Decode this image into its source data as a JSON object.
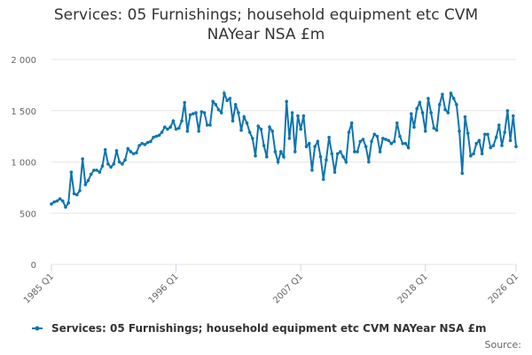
{
  "chart_data": {
    "type": "line",
    "title": "Services: 05 Furnishings; household equipment etc CVM NAYear NSA £m",
    "source": "Source:",
    "categories": [
      "1985 Q1",
      null,
      null,
      null,
      null,
      null,
      null,
      null,
      null,
      null,
      null,
      null,
      null,
      null,
      null,
      null,
      null,
      null,
      null,
      null,
      null,
      null,
      null,
      null,
      null,
      null,
      null,
      null,
      null,
      null,
      null,
      null,
      null,
      null,
      null,
      null,
      null,
      null,
      null,
      null,
      null,
      null,
      null,
      null,
      "1996 Q1",
      null,
      null,
      null,
      null,
      null,
      null,
      null,
      null,
      null,
      null,
      null,
      null,
      null,
      null,
      null,
      null,
      null,
      null,
      null,
      null,
      null,
      null,
      null,
      null,
      null,
      null,
      null,
      null,
      null,
      null,
      null,
      null,
      null,
      null,
      null,
      null,
      null,
      null,
      null,
      null,
      null,
      null,
      null,
      "2007 Q1",
      null,
      null,
      null,
      null,
      null,
      null,
      null,
      null,
      null,
      null,
      null,
      null,
      null,
      null,
      null,
      null,
      null,
      null,
      null,
      null,
      null,
      null,
      null,
      null,
      null,
      null,
      null,
      null,
      null,
      null,
      null,
      null,
      null,
      null,
      null,
      null,
      null,
      null,
      null,
      null,
      null,
      null,
      null,
      "2018 Q1",
      null,
      null,
      null,
      null,
      null,
      null,
      null,
      null,
      null,
      null,
      null,
      null,
      null,
      null,
      null,
      null,
      null,
      null,
      null,
      null,
      null,
      null,
      null,
      null,
      null,
      null,
      null,
      null,
      null,
      null,
      null,
      "2026 Q1"
    ],
    "series": [
      {
        "name": "Services: 05 Furnishings; household equipment etc CVM NAYear NSA £m",
        "color": "#0f75b0",
        "values": [
          590,
          610,
          620,
          640,
          620,
          560,
          600,
          900,
          690,
          680,
          720,
          1030,
          780,
          820,
          880,
          920,
          920,
          900,
          960,
          1120,
          980,
          950,
          980,
          1110,
          1000,
          980,
          1020,
          1130,
          1100,
          1080,
          1090,
          1160,
          1180,
          1170,
          1190,
          1200,
          1240,
          1250,
          1260,
          1290,
          1340,
          1320,
          1340,
          1400,
          1320,
          1330,
          1400,
          1580,
          1300,
          1460,
          1470,
          1480,
          1300,
          1490,
          1480,
          1360,
          1360,
          1590,
          1560,
          1510,
          1480,
          1670,
          1600,
          1620,
          1400,
          1560,
          1480,
          1310,
          1440,
          1380,
          1290,
          1230,
          1060,
          1350,
          1320,
          1160,
          1050,
          1340,
          1300,
          1100,
          1000,
          1100,
          1050,
          1590,
          1230,
          1480,
          1100,
          1450,
          1320,
          1450,
          1150,
          1180,
          920,
          1150,
          1200,
          1050,
          830,
          1020,
          1240,
          1080,
          900,
          1080,
          1100,
          1050,
          1000,
          1290,
          1380,
          1100,
          1100,
          1200,
          1220,
          1150,
          1000,
          1200,
          1270,
          1250,
          1100,
          1230,
          1220,
          1210,
          1180,
          1200,
          1380,
          1250,
          1180,
          1180,
          1140,
          1470,
          1340,
          1520,
          1580,
          1480,
          1300,
          1620,
          1480,
          1330,
          1310,
          1560,
          1660,
          1510,
          1480,
          1670,
          1620,
          1560,
          1300,
          890,
          1440,
          1280,
          1060,
          1080,
          1180,
          1210,
          1080,
          1270,
          1270,
          1140,
          1160,
          1240,
          1360,
          1160,
          1290,
          1500,
          1210,
          1450,
          1150
        ]
      }
    ],
    "ylim": [
      0,
      2000
    ],
    "yticks": [
      0,
      500,
      {
        "value": 1000,
        "label": "1 000"
      },
      {
        "value": 1500,
        "label": "1 500"
      },
      {
        "value": 2000,
        "label": "2 000"
      }
    ],
    "grid": true
  }
}
